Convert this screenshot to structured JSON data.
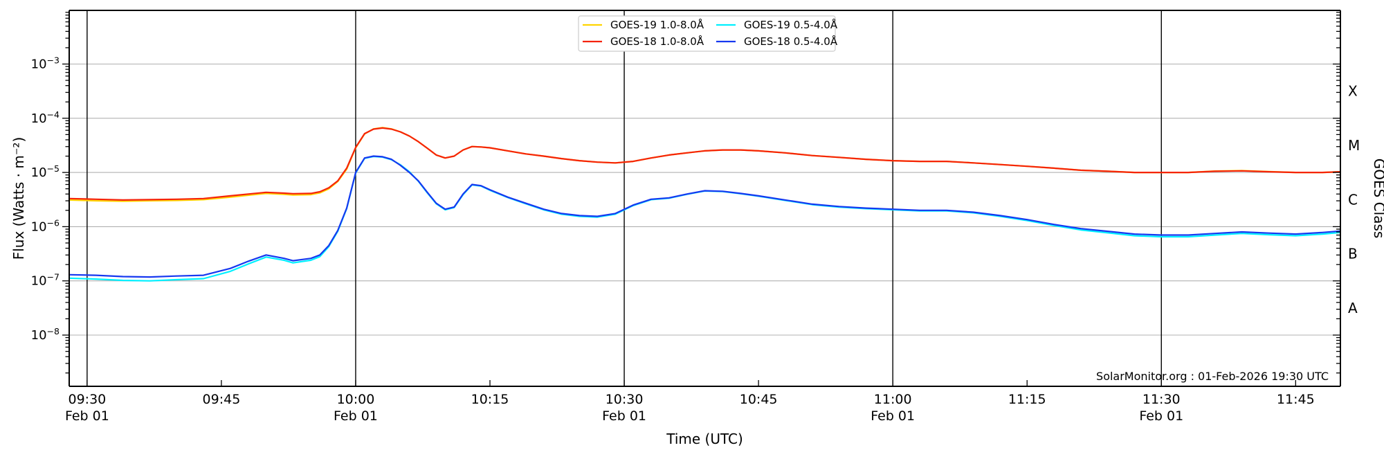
{
  "watermark": {
    "text": "SolarMonitor.org : 01-Feb-2026 19:30 UTC"
  },
  "colors": {
    "background": "#ffffff",
    "axis": "#000000",
    "grid": "#b0b0b0",
    "vline": "#000000",
    "legend_border": "#cccccc",
    "legend_background": "#ffffff"
  },
  "chart_data": {
    "type": "line",
    "title": "",
    "xlabel": "Time (UTC)",
    "ylabel": "Flux (Watts · m⁻²)",
    "ylabel_right": "GOES Class",
    "x_start": "09:28",
    "x_end": "11:50",
    "x_major_ticks": [
      "09:30",
      "09:45",
      "10:00",
      "10:15",
      "10:30",
      "10:45",
      "11:00",
      "11:15",
      "11:30",
      "11:45"
    ],
    "x_date_sublabel": "Feb 01",
    "x_date_sublabel_ticks": [
      "09:30",
      "10:00",
      "10:30",
      "11:00",
      "11:30"
    ],
    "x_vlines": [
      "09:30",
      "10:00",
      "10:30",
      "11:00",
      "11:30"
    ],
    "y_scale": "log",
    "ylim_exp": [
      -9,
      -2
    ],
    "y_labeled_decades": [
      -3,
      -4,
      -5,
      -6,
      -7,
      -8
    ],
    "goes_classes": [
      {
        "label": "X",
        "log_center": -3.5
      },
      {
        "label": "M",
        "log_center": -4.5
      },
      {
        "label": "C",
        "log_center": -5.5
      },
      {
        "label": "B",
        "log_center": -6.5
      },
      {
        "label": "A",
        "log_center": -7.5
      }
    ],
    "legend": {
      "position": "top-center",
      "columns": 2
    },
    "x": [
      "09:28",
      "09:31",
      "09:34",
      "09:37",
      "09:40",
      "09:43",
      "09:46",
      "09:48",
      "09:50",
      "09:52",
      "09:53",
      "09:55",
      "09:56",
      "09:57",
      "09:58",
      "09:59",
      "10:00",
      "10:01",
      "10:02",
      "10:03",
      "10:04",
      "10:05",
      "10:06",
      "10:07",
      "10:08",
      "10:09",
      "10:10",
      "10:11",
      "10:12",
      "10:13",
      "10:14",
      "10:15",
      "10:17",
      "10:19",
      "10:21",
      "10:23",
      "10:25",
      "10:27",
      "10:29",
      "10:31",
      "10:33",
      "10:35",
      "10:37",
      "10:39",
      "10:41",
      "10:43",
      "10:45",
      "10:48",
      "10:51",
      "10:54",
      "10:57",
      "11:00",
      "11:03",
      "11:06",
      "11:09",
      "11:12",
      "11:15",
      "11:18",
      "11:21",
      "11:24",
      "11:27",
      "11:30",
      "11:33",
      "11:36",
      "11:39",
      "11:42",
      "11:45",
      "11:48",
      "11:50"
    ],
    "series": [
      {
        "name": "GOES-19 1.0-8.0Å",
        "color": "#ffd400",
        "values": [
          3.1e-06,
          3e-06,
          2.95e-06,
          3e-06,
          3.05e-06,
          3.15e-06,
          3.5e-06,
          3.8e-06,
          4.1e-06,
          3.95e-06,
          3.85e-06,
          3.9e-06,
          4.2e-06,
          5e-06,
          6.8e-06,
          1.15e-05,
          2.85e-05,
          5.15e-05,
          6.35e-05,
          6.7e-05,
          6.35e-05,
          5.6e-05,
          4.7e-05,
          3.7e-05,
          2.8e-05,
          2.1e-05,
          1.85e-05,
          2e-05,
          2.6e-05,
          3e-05,
          2.95e-05,
          2.85e-05,
          2.5e-05,
          2.2e-05,
          2e-05,
          1.8e-05,
          1.65e-05,
          1.55e-05,
          1.5e-05,
          1.6e-05,
          1.85e-05,
          2.1e-05,
          2.3e-05,
          2.5e-05,
          2.6e-05,
          2.6e-05,
          2.5e-05,
          2.3e-05,
          2.05e-05,
          1.9e-05,
          1.75e-05,
          1.65e-05,
          1.6e-05,
          1.6e-05,
          1.5e-05,
          1.4e-05,
          1.3e-05,
          1.2e-05,
          1.1e-05,
          1.05e-05,
          1e-05,
          1e-05,
          1e-05,
          1.06e-05,
          1.08e-05,
          1.04e-05,
          1e-05,
          1e-05,
          1.03e-05
        ]
      },
      {
        "name": "GOES-18 1.0-8.0Å",
        "color": "#f52308",
        "values": [
          3.3e-06,
          3.2e-06,
          3.1e-06,
          3.15e-06,
          3.2e-06,
          3.3e-06,
          3.7e-06,
          4e-06,
          4.3e-06,
          4.15e-06,
          4.05e-06,
          4.1e-06,
          4.4e-06,
          5.2e-06,
          7e-06,
          1.2e-05,
          2.9e-05,
          5.2e-05,
          6.3e-05,
          6.6e-05,
          6.3e-05,
          5.6e-05,
          4.7e-05,
          3.7e-05,
          2.8e-05,
          2.1e-05,
          1.85e-05,
          2e-05,
          2.6e-05,
          3e-05,
          2.95e-05,
          2.85e-05,
          2.5e-05,
          2.2e-05,
          2e-05,
          1.8e-05,
          1.65e-05,
          1.55e-05,
          1.5e-05,
          1.6e-05,
          1.85e-05,
          2.1e-05,
          2.3e-05,
          2.5e-05,
          2.6e-05,
          2.6e-05,
          2.5e-05,
          2.3e-05,
          2.05e-05,
          1.9e-05,
          1.75e-05,
          1.65e-05,
          1.6e-05,
          1.6e-05,
          1.5e-05,
          1.4e-05,
          1.3e-05,
          1.2e-05,
          1.1e-05,
          1.05e-05,
          1e-05,
          1e-05,
          1e-05,
          1.05e-05,
          1.07e-05,
          1.03e-05,
          1e-05,
          1e-05,
          1.03e-05
        ]
      },
      {
        "name": "GOES-19 0.5-4.0Å",
        "color": "#00f0ff",
        "values": [
          1.12e-07,
          1.08e-07,
          1.02e-07,
          1e-07,
          1.05e-07,
          1.1e-07,
          1.5e-07,
          2.05e-07,
          2.75e-07,
          2.4e-07,
          2.15e-07,
          2.4e-07,
          2.8e-07,
          4.3e-07,
          8.2e-07,
          2.15e-06,
          9.8e-06,
          1.82e-05,
          1.97e-05,
          1.92e-05,
          1.72e-05,
          1.38e-05,
          1.03e-05,
          6.9e-06,
          4.2e-06,
          2.65e-06,
          2.05e-06,
          2.25e-06,
          3.9e-06,
          5.9e-06,
          5.6e-06,
          4.7e-06,
          3.45e-06,
          2.65e-06,
          2.05e-06,
          1.7e-06,
          1.55e-06,
          1.5e-06,
          1.7e-06,
          2.45e-06,
          3.15e-06,
          3.35e-06,
          3.95e-06,
          4.55e-06,
          4.45e-06,
          4.05e-06,
          3.65e-06,
          3.05e-06,
          2.55e-06,
          2.3e-06,
          2.15e-06,
          2.05e-06,
          1.95e-06,
          1.95e-06,
          1.8e-06,
          1.55e-06,
          1.3e-06,
          1.05e-06,
          8.7e-07,
          7.7e-07,
          6.8e-07,
          6.5e-07,
          6.5e-07,
          7e-07,
          7.5e-07,
          7.1e-07,
          6.8e-07,
          7.3e-07,
          7.8e-07
        ]
      },
      {
        "name": "GOES-18 0.5-4.0Å",
        "color": "#1638f0",
        "values": [
          1.3e-07,
          1.27e-07,
          1.2e-07,
          1.18e-07,
          1.23e-07,
          1.27e-07,
          1.7e-07,
          2.3e-07,
          3e-07,
          2.6e-07,
          2.35e-07,
          2.6e-07,
          3e-07,
          4.5e-07,
          8.5e-07,
          2.2e-06,
          1e-05,
          1.85e-05,
          2e-05,
          1.95e-05,
          1.75e-05,
          1.35e-05,
          1e-05,
          7e-06,
          4.3e-06,
          2.7e-06,
          2.1e-06,
          2.3e-06,
          4e-06,
          6e-06,
          5.7e-06,
          4.8e-06,
          3.5e-06,
          2.7e-06,
          2.1e-06,
          1.75e-06,
          1.6e-06,
          1.55e-06,
          1.75e-06,
          2.5e-06,
          3.2e-06,
          3.4e-06,
          4e-06,
          4.6e-06,
          4.5e-06,
          4.1e-06,
          3.7e-06,
          3.1e-06,
          2.6e-06,
          2.35e-06,
          2.2e-06,
          2.1e-06,
          2e-06,
          2e-06,
          1.85e-06,
          1.6e-06,
          1.35e-06,
          1.1e-06,
          9.2e-07,
          8.2e-07,
          7.3e-07,
          7e-07,
          7e-07,
          7.5e-07,
          8e-07,
          7.6e-07,
          7.3e-07,
          7.8e-07,
          8.3e-07
        ]
      }
    ]
  }
}
